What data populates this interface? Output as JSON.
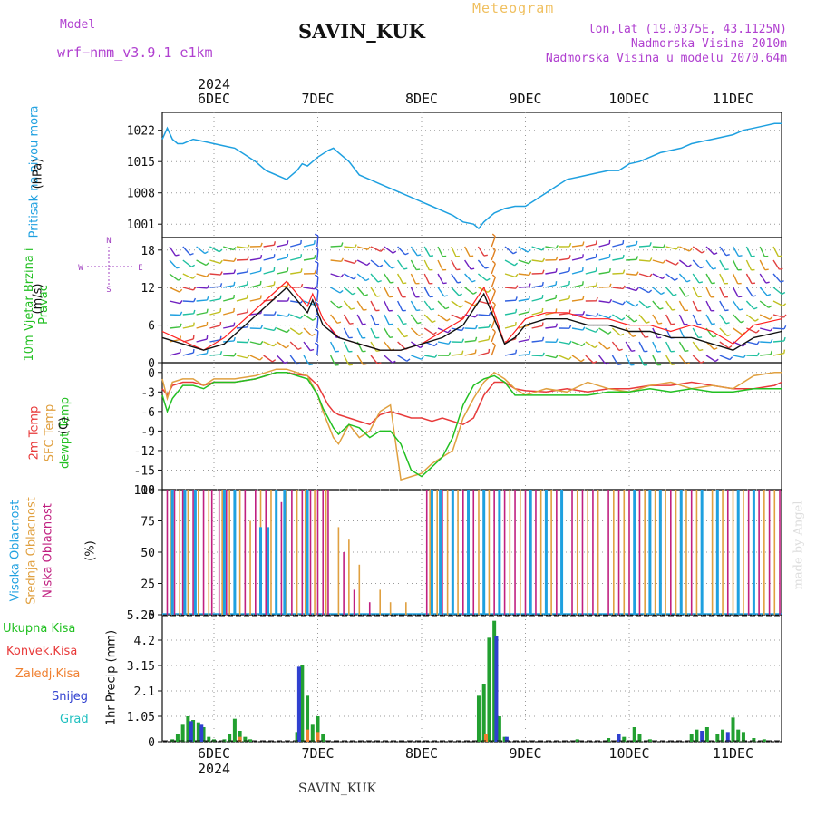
{
  "header": {
    "model_label": "Model",
    "model_name": "wrf−nmm_v3.9.1  e1km",
    "station": "SAVIN_KUK",
    "meteogram": "Meteogram",
    "lonlat": "lon,lat (19.0375E, 43.1125N)",
    "elev": "Nadmorska Visina 2010m",
    "elev_model": "Nadmorska Visina u modelu 2070.64m",
    "watermark": "made by Angel",
    "footer": "SAVIN_KUK"
  },
  "time_axis": {
    "top_year": "2024",
    "bottom_year": "2024",
    "day_labels": [
      "6DEC",
      "7DEC",
      "8DEC",
      "9DEC",
      "10DEC",
      "11DEC"
    ]
  },
  "colors": {
    "pressure": "#1ea0e0",
    "temp2m": "#e83a3a",
    "sfc_temp": "#e0a040",
    "dewpt": "#22c022",
    "cloud_high": "#1ea0e0",
    "cloud_mid": "#e0a040",
    "cloud_low": "#c02080",
    "ukupna": "#22a030",
    "konvek": "#e83a3a",
    "zaledj": "#f08030",
    "snijeg": "#3040d0",
    "grad": "#20c0c0",
    "wind_speed": "#111111",
    "gust": "#ff2020"
  },
  "chart_data": [
    {
      "type": "line",
      "name": "pressure",
      "ylabel_outer": "Pritisak na nivou mora",
      "ylabel_inner": "(hPa)",
      "yticks": [
        1001,
        1008,
        1015,
        1022
      ],
      "ylim": [
        998,
        1026
      ],
      "grid": true,
      "x": [
        -0.5,
        -0.45,
        -0.4,
        -0.35,
        -0.3,
        -0.2,
        -0.1,
        0.0,
        0.1,
        0.2,
        0.3,
        0.4,
        0.5,
        0.6,
        0.7,
        0.8,
        0.85,
        0.9,
        1.0,
        1.1,
        1.15,
        1.2,
        1.3,
        1.4,
        1.5,
        1.6,
        1.7,
        1.8,
        1.9,
        2.0,
        2.1,
        2.2,
        2.3,
        2.4,
        2.5,
        2.55,
        2.6,
        2.65,
        2.7,
        2.75,
        2.8,
        2.9,
        3.0,
        3.1,
        3.2,
        3.3,
        3.4,
        3.5,
        3.6,
        3.7,
        3.8,
        3.9,
        4.0,
        4.1,
        4.2,
        4.3,
        4.4,
        4.5,
        4.6,
        4.7,
        4.8,
        4.9,
        5.0,
        5.1,
        5.2,
        5.3,
        5.4,
        5.5
      ],
      "series": [
        {
          "name": "pressure",
          "values": [
            1020.0,
            1022.5,
            1020.0,
            1019.0,
            1019.0,
            1020.0,
            1019.5,
            1019.0,
            1018.5,
            1018.0,
            1016.5,
            1015.0,
            1013.0,
            1012.0,
            1011.0,
            1013.0,
            1014.5,
            1014.0,
            1016.0,
            1017.5,
            1018.0,
            1017.0,
            1015.0,
            1012.0,
            1011.0,
            1010.0,
            1009.0,
            1008.0,
            1007.0,
            1006.0,
            1005.0,
            1004.0,
            1003.0,
            1001.5,
            1001.0,
            1000.0,
            1001.5,
            1002.5,
            1003.5,
            1004.0,
            1004.5,
            1005.0,
            1005.0,
            1006.5,
            1008.0,
            1009.5,
            1011.0,
            1011.5,
            1012.0,
            1012.5,
            1013.0,
            1013.0,
            1014.5,
            1015.0,
            1016.0,
            1017.0,
            1017.5,
            1018.0,
            1019.0,
            1019.5,
            1020.0,
            1020.5,
            1021.0,
            1022.0,
            1022.5,
            1023.0,
            1023.5,
            1023.5
          ]
        }
      ]
    },
    {
      "type": "line",
      "name": "wind",
      "ylabel_outer": "10m Vjetar Brzina i Pravac",
      "ylabel_inner": "(m/s)",
      "compass": [
        "N",
        "S",
        "W",
        "E"
      ],
      "yticks": [
        0,
        6,
        12,
        18
      ],
      "ylim": [
        0,
        20
      ],
      "grid": true,
      "x": [
        -0.5,
        -0.3,
        -0.1,
        0.1,
        0.3,
        0.5,
        0.7,
        0.9,
        0.95,
        1.05,
        1.2,
        1.4,
        1.6,
        1.8,
        2.0,
        2.2,
        2.4,
        2.6,
        2.7,
        2.8,
        2.9,
        3.0,
        3.2,
        3.4,
        3.6,
        3.8,
        4.0,
        4.2,
        4.4,
        4.6,
        4.8,
        5.0,
        5.2,
        5.5
      ],
      "series": [
        {
          "name": "speed",
          "values": [
            4,
            3,
            2,
            3,
            6,
            9,
            12,
            8,
            10,
            6,
            4,
            3,
            2,
            2,
            3,
            4,
            6,
            11,
            7,
            3,
            4,
            6,
            7,
            7,
            6,
            6,
            5,
            5,
            4,
            4,
            3,
            2,
            4,
            5
          ]
        },
        {
          "name": "gust",
          "values": [
            5,
            3.5,
            2,
            4,
            7,
            10,
            13,
            9,
            11,
            7,
            4,
            3,
            2,
            2,
            3,
            5,
            7,
            12,
            8,
            3,
            5,
            7,
            8,
            8,
            7,
            7,
            6,
            6,
            5,
            6,
            5,
            3,
            6,
            7
          ]
        }
      ]
    },
    {
      "type": "line",
      "name": "temperature",
      "ylabel_outer": [
        "2m Temp",
        "SFC Temp",
        "dewpt Temp"
      ],
      "ylabel_inner": "(C)",
      "yticks": [
        0,
        -3,
        -6,
        -9,
        -12,
        -15,
        -18
      ],
      "ylim": [
        -18,
        1.5
      ],
      "grid": true,
      "x": [
        -0.5,
        -0.45,
        -0.4,
        -0.3,
        -0.2,
        -0.1,
        0.0,
        0.2,
        0.4,
        0.5,
        0.6,
        0.7,
        0.8,
        0.9,
        1.0,
        1.05,
        1.1,
        1.15,
        1.2,
        1.3,
        1.4,
        1.5,
        1.6,
        1.7,
        1.8,
        1.9,
        2.0,
        2.1,
        2.2,
        2.3,
        2.4,
        2.5,
        2.6,
        2.7,
        2.8,
        2.9,
        3.0,
        3.2,
        3.4,
        3.6,
        3.8,
        4.0,
        4.2,
        4.4,
        4.6,
        4.8,
        5.0,
        5.2,
        5.4,
        5.5
      ],
      "series": [
        {
          "name": "2m Temp",
          "values": [
            -2.5,
            -3.5,
            -2.0,
            -1.5,
            -1.5,
            -2.0,
            -1.5,
            -1.5,
            -1.0,
            -0.5,
            0.0,
            0.0,
            -0.3,
            -0.5,
            -2.0,
            -3.5,
            -5.0,
            -6.0,
            -6.5,
            -7.0,
            -7.5,
            -8.0,
            -6.5,
            -6.0,
            -6.5,
            -7.0,
            -7.0,
            -7.5,
            -7.0,
            -7.5,
            -8.0,
            -7.0,
            -3.5,
            -1.5,
            -1.5,
            -2.5,
            -2.8,
            -3.0,
            -2.5,
            -3.0,
            -2.5,
            -2.5,
            -2.0,
            -2.0,
            -1.5,
            -2.0,
            -2.5,
            -2.5,
            -2.0,
            -1.5
          ]
        },
        {
          "name": "SFC Temp",
          "values": [
            -1.0,
            -4.0,
            -1.5,
            -1.0,
            -1.0,
            -2.0,
            -1.0,
            -1.0,
            -0.5,
            0.0,
            0.5,
            0.5,
            0.0,
            -0.5,
            -3.5,
            -6.0,
            -8.0,
            -10.0,
            -11.0,
            -8.0,
            -10.0,
            -9.0,
            -6.0,
            -5.0,
            -16.5,
            -16.0,
            -15.5,
            -14.0,
            -13.0,
            -12.0,
            -7.0,
            -4.0,
            -1.5,
            0.0,
            -1.0,
            -2.5,
            -3.5,
            -2.5,
            -3.0,
            -1.5,
            -2.5,
            -3.0,
            -2.0,
            -1.5,
            -2.5,
            -2.0,
            -2.5,
            -0.5,
            0.0,
            0.0
          ]
        },
        {
          "name": "dewpt Temp",
          "values": [
            -3.5,
            -6.0,
            -4.0,
            -2.0,
            -2.0,
            -2.5,
            -1.5,
            -1.5,
            -1.0,
            -0.5,
            0.0,
            0.0,
            -0.5,
            -1.0,
            -3.5,
            -5.5,
            -7.0,
            -8.5,
            -9.5,
            -8.0,
            -8.5,
            -10.0,
            -9.0,
            -9.0,
            -11.0,
            -15.0,
            -16.0,
            -14.5,
            -13.0,
            -10.0,
            -5.0,
            -2.0,
            -1.0,
            -0.5,
            -1.5,
            -3.5,
            -3.5,
            -3.5,
            -3.5,
            -3.5,
            -3.0,
            -3.0,
            -2.5,
            -3.0,
            -2.5,
            -3.0,
            -3.0,
            -2.5,
            -2.5,
            -2.5
          ]
        }
      ]
    },
    {
      "type": "bar",
      "name": "cloud_cover",
      "ylabel_outer": [
        "Visoka Oblacnost",
        "Srednja Oblacnost",
        "Niska Oblacnost"
      ],
      "ylabel_inner": "(%)",
      "yticks": [
        0,
        25,
        50,
        75,
        100
      ],
      "ylim": [
        0,
        100
      ],
      "grid": true,
      "series": [
        {
          "name": "Niska",
          "x": [
            -0.45,
            -0.38,
            -0.3,
            -0.2,
            -0.1,
            -0.02,
            0.05,
            0.12,
            0.3,
            0.4,
            0.5,
            0.65,
            0.75,
            0.85,
            0.93,
            1.0,
            1.05,
            1.1,
            1.25,
            1.35,
            1.5,
            2.05,
            2.1,
            2.2,
            2.3,
            2.4,
            2.5,
            2.6,
            2.7,
            2.8,
            2.9,
            3.0,
            3.1,
            3.2,
            3.3,
            3.45,
            3.55,
            3.65,
            3.8,
            3.9,
            4.0,
            4.1,
            4.2,
            4.3,
            4.4,
            4.5,
            4.6,
            4.7,
            4.85,
            4.95,
            5.05,
            5.15,
            5.25,
            5.35,
            5.45
          ],
          "values": [
            100,
            100,
            100,
            100,
            100,
            100,
            100,
            100,
            100,
            100,
            100,
            90,
            100,
            100,
            100,
            100,
            100,
            100,
            50,
            20,
            10,
            100,
            100,
            100,
            100,
            100,
            100,
            100,
            100,
            100,
            100,
            100,
            100,
            100,
            100,
            100,
            100,
            100,
            100,
            100,
            100,
            100,
            100,
            100,
            100,
            100,
            100,
            100,
            100,
            100,
            100,
            100,
            100,
            100,
            100
          ]
        },
        {
          "name": "Srednja",
          "x": [
            -0.42,
            -0.33,
            -0.25,
            -0.15,
            -0.05,
            0.08,
            0.15,
            0.25,
            0.35,
            0.45,
            0.55,
            0.7,
            0.8,
            0.88,
            0.97,
            1.08,
            1.2,
            1.3,
            1.4,
            1.6,
            1.7,
            1.85,
            2.08,
            2.15,
            2.25,
            2.35,
            2.45,
            2.55,
            2.65,
            2.75,
            2.85,
            2.95,
            3.05,
            3.15,
            3.25,
            3.35,
            3.5,
            3.6,
            3.7,
            3.85,
            3.95,
            4.05,
            4.15,
            4.25,
            4.35,
            4.45,
            4.55,
            4.65,
            4.8,
            4.9,
            5.0,
            5.1,
            5.2,
            5.3,
            5.4
          ],
          "values": [
            100,
            100,
            100,
            100,
            100,
            100,
            100,
            100,
            75,
            100,
            100,
            100,
            100,
            100,
            100,
            100,
            70,
            60,
            40,
            20,
            10,
            10,
            100,
            100,
            100,
            100,
            100,
            100,
            100,
            100,
            100,
            100,
            100,
            100,
            100,
            100,
            100,
            100,
            100,
            100,
            100,
            100,
            100,
            100,
            100,
            100,
            100,
            100,
            100,
            100,
            100,
            100,
            100,
            100,
            100
          ]
        },
        {
          "name": "Visoka",
          "x": [
            -0.4,
            -0.28,
            -0.18,
            0.1,
            0.2,
            0.45,
            0.52,
            0.6,
            0.68,
            0.9,
            2.1,
            2.18,
            2.3,
            2.45,
            2.6,
            2.75,
            3.05,
            3.2,
            3.35,
            4.05,
            4.2,
            4.3,
            4.5,
            4.7,
            4.85,
            5.05,
            5.2
          ],
          "values": [
            100,
            100,
            100,
            100,
            100,
            70,
            70,
            100,
            100,
            100,
            100,
            100,
            100,
            100,
            100,
            100,
            100,
            100,
            100,
            100,
            100,
            100,
            100,
            100,
            100,
            100,
            100
          ]
        }
      ]
    },
    {
      "type": "bar",
      "name": "precipitation",
      "ylabel_outer": [
        "Ukupna  Kisa",
        "Konvek.Kisa",
        "Zaledj.Kisa",
        "Snijeg",
        "Grad"
      ],
      "ylabel_inner": "1hr Precip (mm)",
      "yticks": [
        0,
        1.05,
        2.1,
        3.15,
        4.2,
        5.25
      ],
      "ylim": [
        0,
        5.25
      ],
      "grid": true,
      "series": [
        {
          "name": "Ukupna",
          "x": [
            -0.4,
            -0.35,
            -0.3,
            -0.25,
            -0.2,
            -0.15,
            -0.1,
            -0.05,
            0.0,
            0.1,
            0.15,
            0.2,
            0.25,
            0.3,
            0.35,
            0.8,
            0.85,
            0.9,
            0.95,
            1.0,
            1.05,
            2.55,
            2.6,
            2.65,
            2.7,
            2.75,
            2.8,
            3.5,
            3.8,
            3.95,
            4.05,
            4.1,
            4.2,
            4.6,
            4.65,
            4.75,
            4.85,
            4.9,
            5.0,
            5.05,
            5.1,
            5.2,
            5.3
          ],
          "values": [
            0.1,
            0.3,
            0.7,
            1.05,
            0.9,
            0.8,
            0.6,
            0.2,
            0.1,
            0.1,
            0.3,
            0.95,
            0.45,
            0.2,
            0.1,
            0.4,
            3.15,
            1.9,
            0.7,
            1.05,
            0.3,
            1.9,
            2.4,
            4.3,
            5.0,
            1.05,
            0.2,
            0.1,
            0.15,
            0.2,
            0.6,
            0.3,
            0.1,
            0.3,
            0.5,
            0.6,
            0.3,
            0.5,
            1.0,
            0.5,
            0.4,
            0.15,
            0.1
          ]
        },
        {
          "name": "Snijeg",
          "x": [
            -0.22,
            -0.12,
            0.82,
            2.72,
            2.82,
            3.9,
            4.7,
            4.95
          ],
          "values": [
            0.85,
            0.7,
            3.1,
            4.35,
            0.2,
            0.3,
            0.45,
            0.4
          ]
        },
        {
          "name": "Zaledj",
          "x": [
            0.25,
            0.9,
            1.0,
            2.62
          ],
          "values": [
            0.2,
            0.5,
            0.4,
            0.3
          ]
        }
      ]
    }
  ]
}
